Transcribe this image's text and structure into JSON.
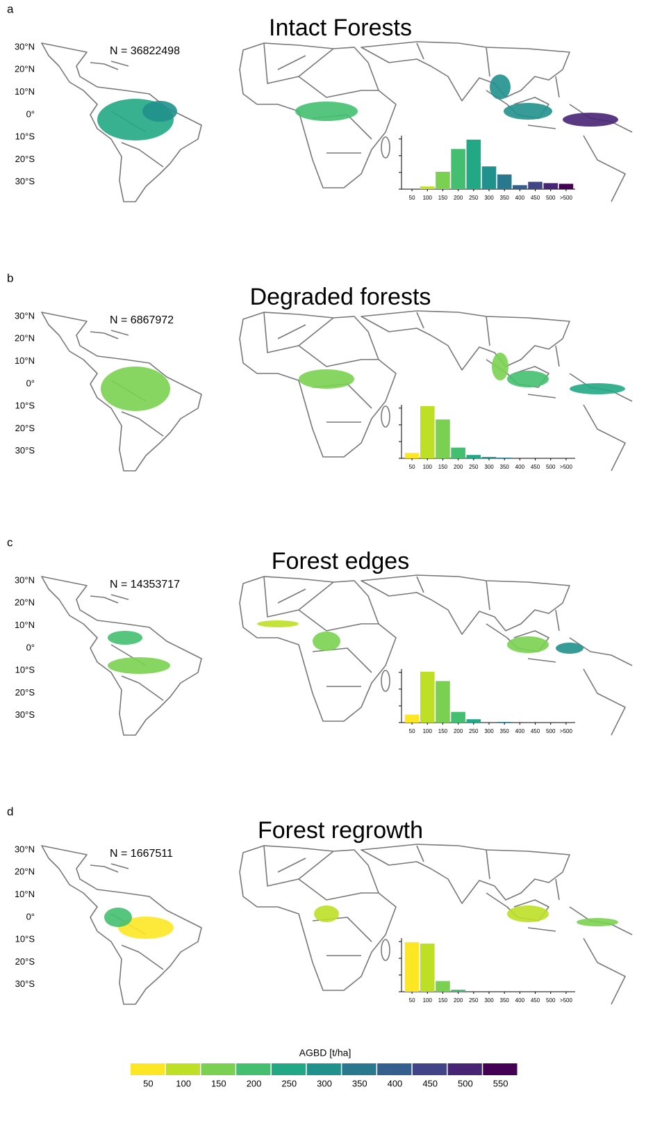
{
  "chart_data": [
    {
      "type": "bar",
      "panel": "a",
      "title": "Intact Forests",
      "annotation": "N = 36822498",
      "lat_ticks": [
        "30°N",
        "20°N",
        "10°N",
        "0°",
        "10°S",
        "20°S",
        "30°S"
      ],
      "categories": [
        "50",
        "100",
        "150",
        "200",
        "250",
        "300",
        "350",
        "400",
        "450",
        "500",
        ">500"
      ],
      "values": [
        0,
        4,
        26,
        60,
        74,
        34,
        22,
        6,
        11,
        9,
        8
      ],
      "ylim": [
        0,
        80
      ],
      "yticks": [
        0,
        25,
        50,
        75
      ]
    },
    {
      "type": "bar",
      "panel": "b",
      "title": "Degraded forests",
      "annotation": "N = 6867972",
      "lat_ticks": [
        "30°N",
        "20°N",
        "10°N",
        "0°",
        "10°S",
        "20°S",
        "30°S"
      ],
      "categories": [
        "50",
        "100",
        "150",
        "200",
        "250",
        "300",
        "350",
        "400",
        "450",
        "500",
        ">500"
      ],
      "values": [
        8,
        78,
        58,
        16,
        5,
        2,
        1,
        0,
        0,
        0,
        0
      ],
      "ylim": [
        0,
        80
      ],
      "yticks": [
        0,
        25,
        50,
        75
      ]
    },
    {
      "type": "bar",
      "panel": "c",
      "title": "Forest edges",
      "annotation": "N = 14353717",
      "lat_ticks": [
        "30°N",
        "20°N",
        "10°N",
        "0°",
        "10°S",
        "20°S",
        "30°S"
      ],
      "categories": [
        "50",
        "100",
        "150",
        "200",
        "250",
        "300",
        "350",
        "400",
        "450",
        "500",
        ">500"
      ],
      "values": [
        12,
        76,
        62,
        16,
        5,
        0,
        1,
        0,
        0,
        0,
        0
      ],
      "ylim": [
        0,
        80
      ],
      "yticks": [
        0,
        25,
        50,
        75
      ]
    },
    {
      "type": "bar",
      "panel": "d",
      "title": "Forest regrowth",
      "annotation": "N = 1667511",
      "lat_ticks": [
        "30°N",
        "20°N",
        "10°N",
        "0°",
        "10°S",
        "20°S",
        "30°S"
      ],
      "categories": [
        "50",
        "100",
        "150",
        "200",
        "250",
        "300",
        "350",
        "400",
        "450",
        "500",
        ">500"
      ],
      "values": [
        74,
        72,
        16,
        3,
        0,
        0,
        0,
        0,
        0,
        0,
        0
      ],
      "ylim": [
        0,
        80
      ],
      "yticks": [
        0,
        25,
        50,
        75
      ]
    },
    {
      "type": "colorbar",
      "title": "AGBD [t/ha]",
      "ticks": [
        50,
        100,
        150,
        200,
        250,
        300,
        350,
        400,
        450,
        500,
        550
      ],
      "colors": [
        "#fde725",
        "#bddf26",
        "#7ad151",
        "#44bf70",
        "#22a884",
        "#21918c",
        "#2a788e",
        "#355f8d",
        "#414487",
        "#482475",
        "#440154"
      ]
    }
  ]
}
